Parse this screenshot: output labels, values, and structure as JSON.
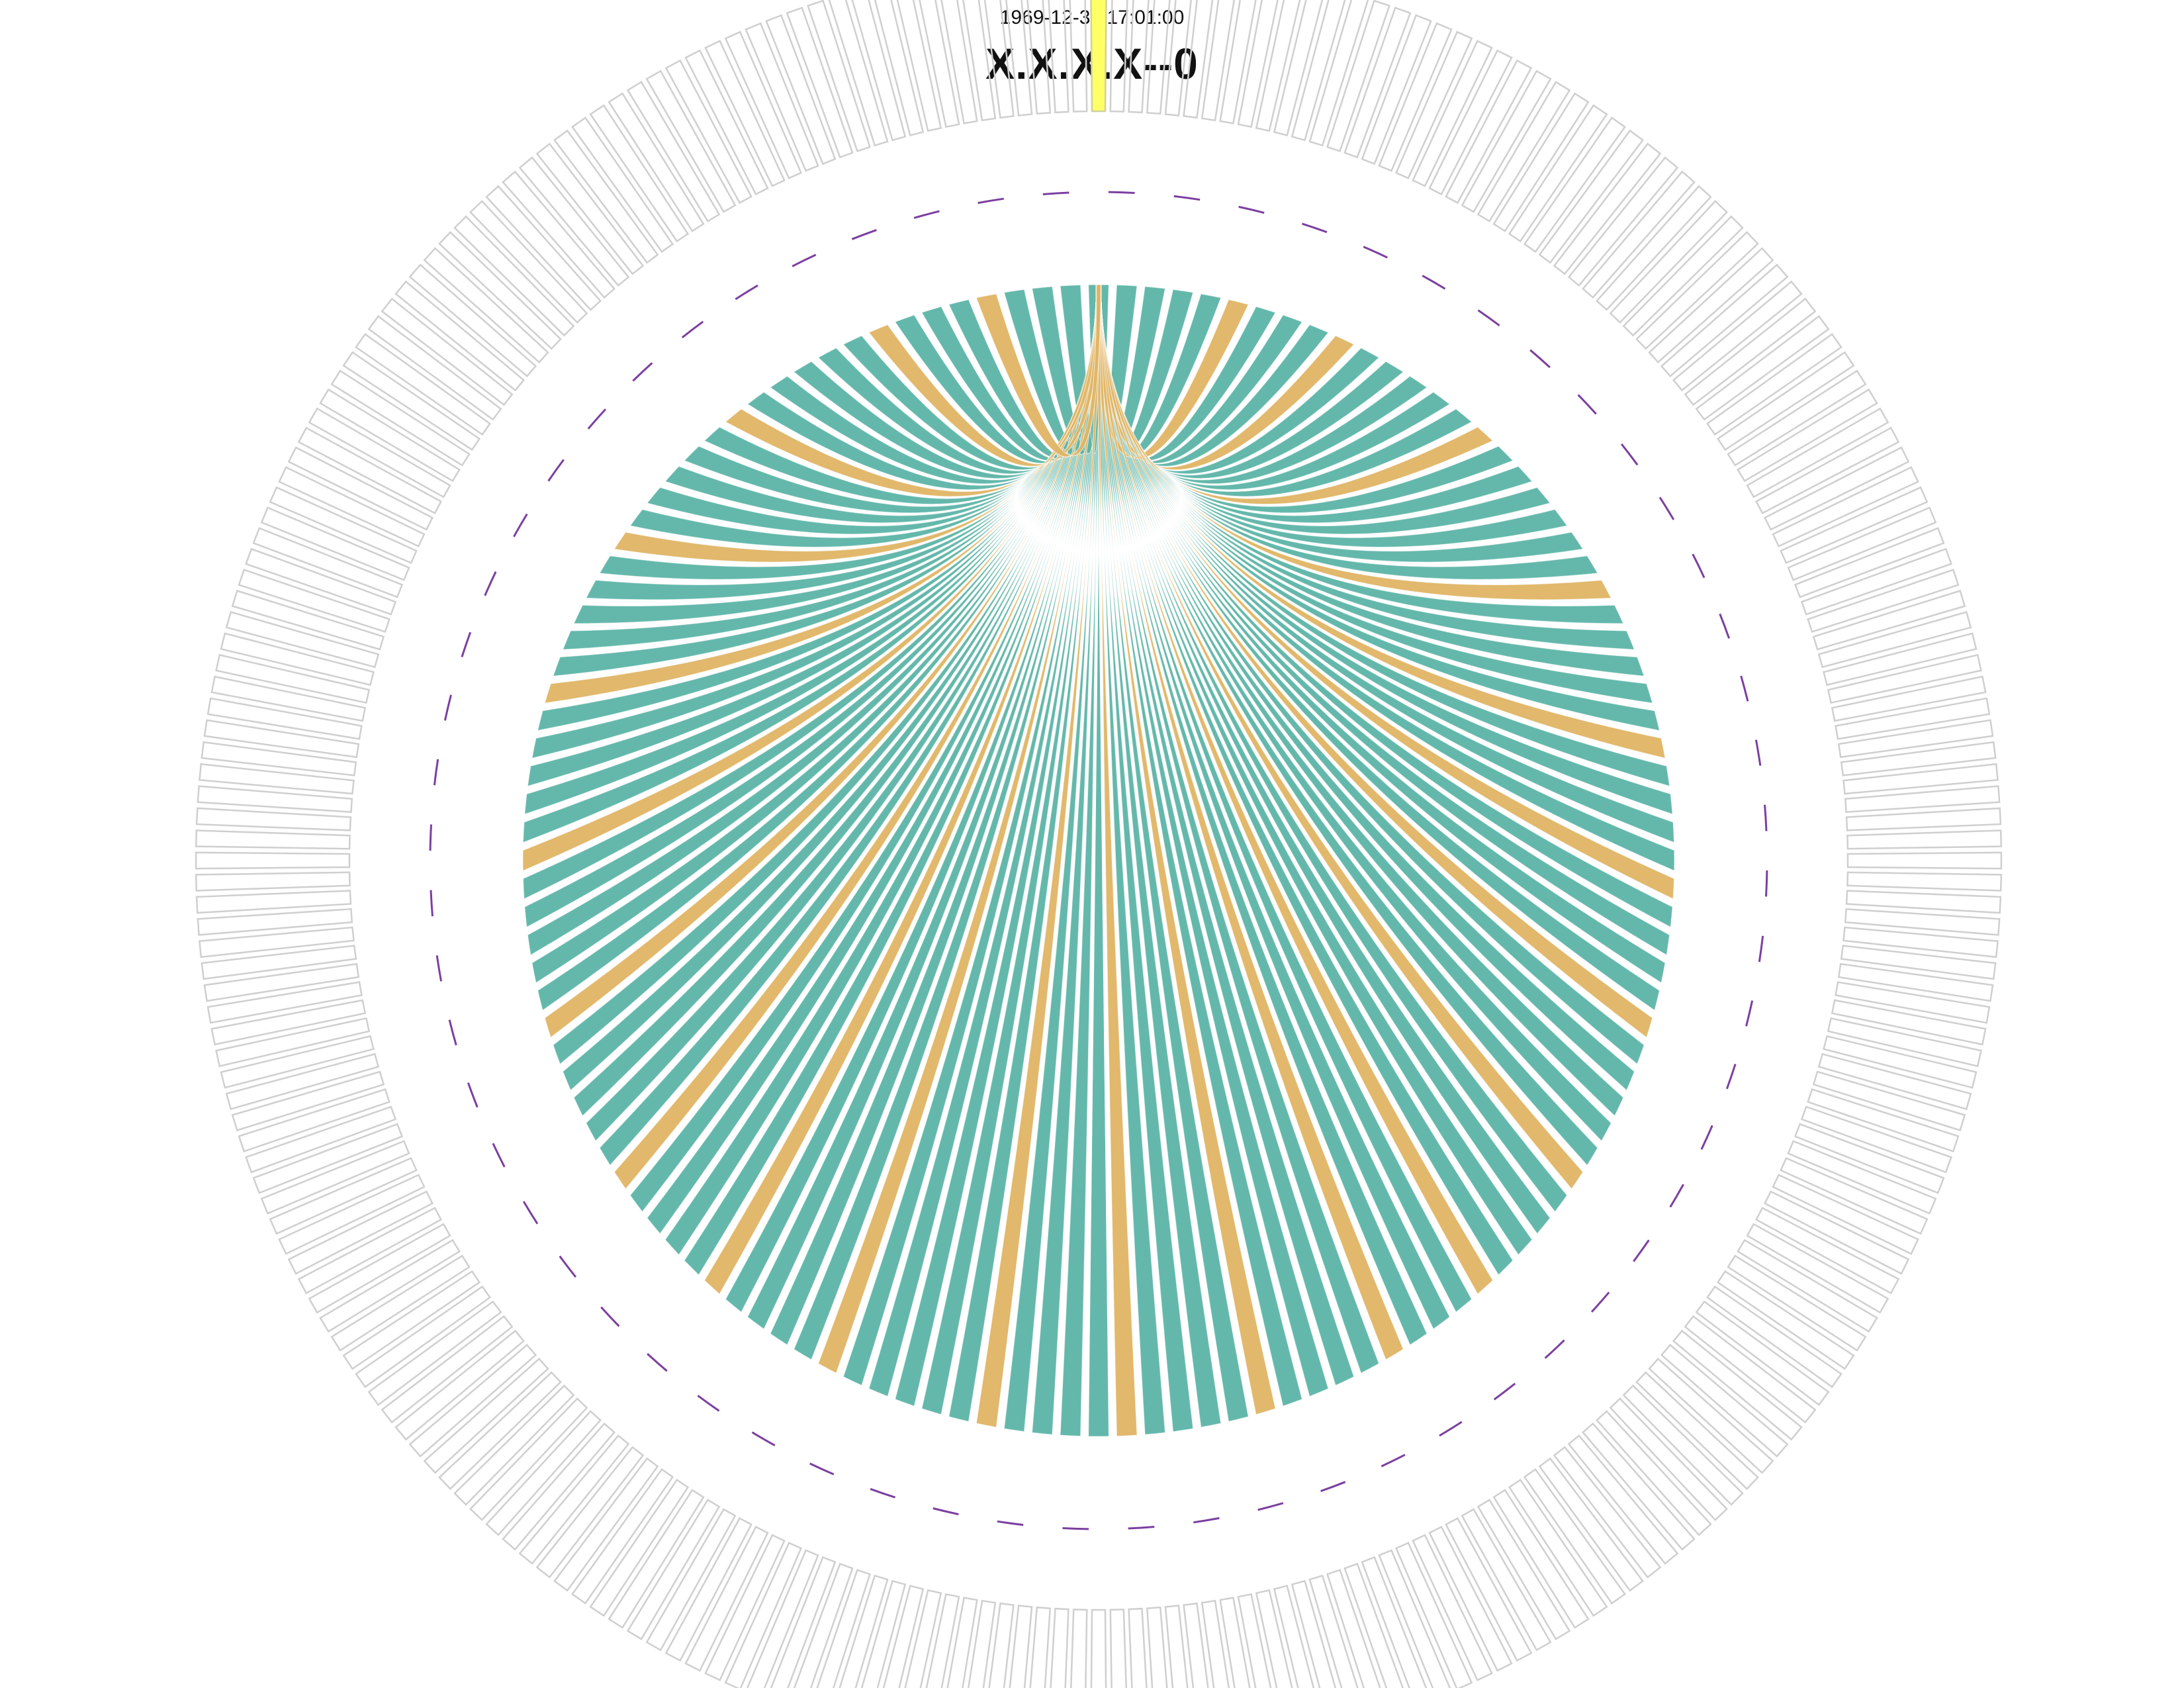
{
  "header": {
    "timestamp": "1969-12-31 17:01:00",
    "title": "X.X.X.X--0"
  },
  "colors": {
    "background": "#ffffff",
    "outer_segment_stroke": "#cfcfcf",
    "highlight_segment_fill": "#ffff66",
    "highlight_segment_stroke": "#d0d0a0",
    "marker": "#7b3fa0",
    "chord_primary": "#5cb4a6",
    "chord_secondary": "#dfb464"
  },
  "chart_data": {
    "type": "chord",
    "outer_ring_segments": 256,
    "highlighted_segment": 0,
    "chord_count": 128,
    "chord_source": 0,
    "secondary_chord_indices": [
      5,
      9,
      15,
      22,
      28,
      33,
      38,
      44,
      49,
      53,
      58,
      63,
      68,
      74,
      79,
      84,
      90,
      96,
      102,
      108,
      114,
      120,
      124
    ]
  }
}
